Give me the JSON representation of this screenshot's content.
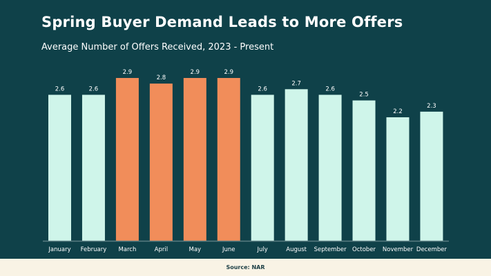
{
  "chart_data": {
    "type": "bar",
    "title": "Spring Buyer Demand Leads to More Offers",
    "subtitle": "Average Number of Offers Received, 2023 - Present",
    "categories": [
      "January",
      "February",
      "March",
      "April",
      "May",
      "June",
      "July",
      "August",
      "September",
      "October",
      "November",
      "December"
    ],
    "values": [
      2.6,
      2.6,
      2.9,
      2.8,
      2.9,
      2.9,
      2.6,
      2.7,
      2.6,
      2.5,
      2.2,
      2.3
    ],
    "highlighted": [
      "March",
      "April",
      "May",
      "June"
    ],
    "ylim": [
      0,
      2.9
    ],
    "grid": false,
    "legend": "none",
    "xlabel": "",
    "ylabel": ""
  },
  "colors": {
    "background": "#0f4149",
    "bar_default": "#cff5ea",
    "bar_highlight": "#f18d5a",
    "axis": "#5a7d82",
    "label_text": "#ffffff",
    "footer_bg": "#f9f3e5"
  },
  "footer": {
    "source": "Source: NAR"
  }
}
